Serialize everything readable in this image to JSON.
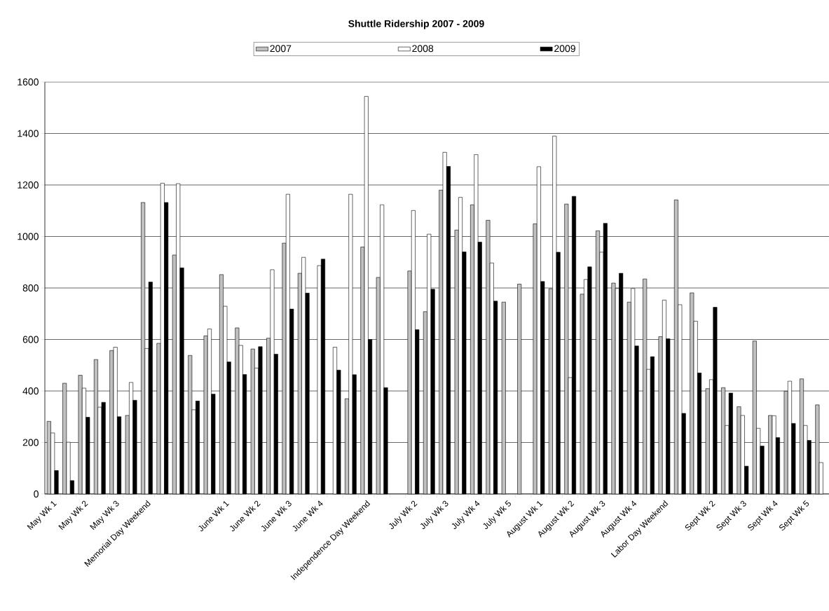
{
  "chart_data": {
    "type": "bar",
    "title": "Shuttle Ridership 2007 - 2009",
    "categories": [
      "May Wk 1",
      null,
      "May Wk 2",
      null,
      "May Wk 3",
      null,
      "Memorial Day Weekend",
      null,
      null,
      null,
      null,
      "June Wk 1",
      null,
      "June Wk 2",
      null,
      "June Wk 3",
      null,
      "June Wk 4",
      null,
      null,
      "Independence Day Weekend",
      null,
      null,
      "July Wk 2",
      null,
      "July Wk 3",
      null,
      "July Wk 4",
      null,
      "July Wk 5",
      null,
      "August Wk 1",
      null,
      "August Wk 2",
      null,
      "August Wk 3",
      null,
      "August Wk 4",
      null,
      "Labor Day Weekend",
      null,
      null,
      "Sept Wk 2",
      null,
      "Sept Wk 3",
      null,
      "Sept Wk 4",
      null,
      "Sept Wk 5",
      null
    ],
    "series": [
      {
        "name": "2007",
        "color": "#c0c0c0",
        "values": [
          282,
          430,
          461,
          522,
          557,
          305,
          1132,
          585,
          928,
          538,
          614,
          852,
          645,
          563,
          605,
          974,
          857,
          null,
          null,
          370,
          959,
          841,
          null,
          866,
          708,
          1180,
          1025,
          1123,
          1063,
          745,
          815,
          1049,
          797,
          1126,
          776,
          1022,
          819,
          745,
          835,
          611,
          1142,
          781,
          409,
          413,
          339,
          594,
          305,
          399,
          447,
          346
        ]
      },
      {
        "name": "2008",
        "color": "#ffffff",
        "values": [
          237,
          201,
          411,
          337,
          570,
          433,
          565,
          1207,
          1205,
          327,
          641,
          729,
          577,
          489,
          871,
          1164,
          919,
          887,
          570,
          1164,
          1544,
          1123,
          null,
          1101,
          1009,
          1327,
          1152,
          1318,
          897,
          null,
          null,
          1271,
          1390,
          452,
          833,
          939,
          798,
          798,
          484,
          753,
          735,
          671,
          444,
          266,
          305,
          255,
          304,
          438,
          266,
          122
        ]
      },
      {
        "name": "2009",
        "color": "#000000",
        "values": [
          91,
          52,
          298,
          356,
          300,
          364,
          823,
          1132,
          878,
          361,
          388,
          513,
          464,
          572,
          543,
          718,
          780,
          912,
          481,
          463,
          600,
          413,
          null,
          638,
          795,
          1272,
          940,
          978,
          749,
          null,
          null,
          825,
          939,
          1156,
          882,
          1051,
          857,
          575,
          533,
          603,
          313,
          470,
          725,
          392,
          108,
          186,
          219,
          274,
          208,
          null
        ]
      }
    ],
    "ylim": [
      0,
      1600
    ],
    "yticks": [
      0,
      200,
      400,
      600,
      800,
      1000,
      1200,
      1400,
      1600
    ],
    "grid": "y",
    "legend": "top"
  }
}
